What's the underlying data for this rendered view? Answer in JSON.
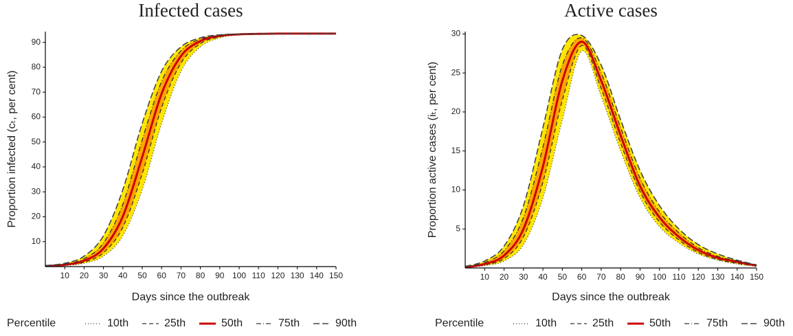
{
  "chart_data": [
    {
      "type": "line",
      "title": "Infected cases",
      "x_label": "Days since the outbreak",
      "y_label": "Proportion infected (cₜ, per cent)",
      "legend_title": "Percentile",
      "band_colors": [
        "#ffe600",
        "#ffa500"
      ],
      "x": [
        0,
        10,
        20,
        30,
        40,
        50,
        60,
        70,
        80,
        90,
        100,
        110,
        120,
        130,
        140,
        150
      ],
      "series": [
        {
          "name": "10th",
          "color": "#333333",
          "dash": "1,3",
          "width": 1.3,
          "values": [
            0.13,
            0.42,
            1.33,
            4.19,
            12.4,
            30.9,
            57.5,
            78.4,
            88.2,
            91.8,
            93.0,
            93.3,
            93.4,
            93.5,
            93.5,
            93.5
          ]
        },
        {
          "name": "25th",
          "color": "#333333",
          "dash": "6,4",
          "width": 1.3,
          "values": [
            0.17,
            0.56,
            1.78,
            5.57,
            15.8,
            37.3,
            63.8,
            81.7,
            89.5,
            92.2,
            93.1,
            93.3,
            93.4,
            93.5,
            93.5,
            93.5
          ]
        },
        {
          "name": "50th",
          "color": "#cc0000",
          "dash": "none",
          "width": 3,
          "values": [
            0.23,
            0.75,
            2.37,
            7.3,
            20.2,
            44.0,
            69.4,
            84.5,
            90.5,
            92.6,
            93.2,
            93.4,
            93.5,
            93.5,
            93.5,
            93.5
          ]
        },
        {
          "name": "75th",
          "color": "#333333",
          "dash": "7,3,1,3",
          "width": 1.3,
          "values": [
            0.31,
            1.0,
            3.17,
            9.5,
            25.1,
            50.9,
            74.3,
            86.6,
            91.3,
            92.8,
            93.3,
            93.4,
            93.5,
            93.5,
            93.5,
            93.5
          ]
        },
        {
          "name": "90th",
          "color": "#444444",
          "dash": "9,4",
          "width": 1.6,
          "values": [
            0.42,
            1.33,
            4.19,
            12.4,
            30.9,
            57.5,
            78.4,
            88.2,
            91.8,
            93.0,
            93.3,
            93.4,
            93.5,
            93.5,
            93.5,
            93.5
          ]
        }
      ],
      "xlim": [
        0,
        150
      ],
      "xticks": [
        10,
        20,
        30,
        40,
        50,
        60,
        70,
        80,
        90,
        100,
        110,
        120,
        130,
        140,
        150
      ],
      "ylim": [
        0,
        94.3
      ],
      "yticks": [
        10,
        20,
        30,
        40,
        50,
        60,
        70,
        80,
        90
      ]
    },
    {
      "type": "line",
      "title": "Active cases",
      "x_label": "Days since the outbreak",
      "y_label": "Proportion active cases (iₜ, per cent)",
      "legend_title": "Percentile",
      "band_colors": [
        "#ffe600",
        "#ffa500"
      ],
      "x": [
        0,
        10,
        20,
        30,
        40,
        50,
        60,
        70,
        80,
        90,
        100,
        110,
        120,
        130,
        140,
        150
      ],
      "series": [
        {
          "name": "10th",
          "color": "#333333",
          "dash": "1,3",
          "width": 1.3,
          "values": [
            0.05,
            0.3,
            0.9,
            3,
            9,
            19,
            27.8,
            22,
            15,
            9,
            5.3,
            3.2,
            1.8,
            1,
            0.5,
            0.2
          ]
        },
        {
          "name": "25th",
          "color": "#333333",
          "dash": "6,4",
          "width": 1.3,
          "values": [
            0.08,
            0.4,
            1.2,
            4,
            11,
            21.5,
            28.5,
            23,
            16,
            9.8,
            5.9,
            3.6,
            2,
            1.1,
            0.6,
            0.25
          ]
        },
        {
          "name": "50th",
          "color": "#cc0000",
          "dash": "none",
          "width": 3,
          "values": [
            0.1,
            0.5,
            1.6,
            5,
            13,
            24,
            29,
            24,
            17,
            10.5,
            6.5,
            4,
            2.3,
            1.3,
            0.8,
            0.3
          ]
        },
        {
          "name": "75th",
          "color": "#333333",
          "dash": "7,3,1,3",
          "width": 1.3,
          "values": [
            0.15,
            0.7,
            2.2,
            6.5,
            15.5,
            26,
            29.5,
            25,
            18,
            11.5,
            7.2,
            4.5,
            2.6,
            1.5,
            0.9,
            0.35
          ]
        },
        {
          "name": "90th",
          "color": "#444444",
          "dash": "9,4",
          "width": 1.6,
          "values": [
            0.2,
            0.9,
            2.8,
            8,
            18,
            28,
            29.8,
            26,
            19,
            12.5,
            8,
            5,
            3,
            1.8,
            1,
            0.4
          ]
        }
      ],
      "xlim": [
        0,
        150
      ],
      "xticks": [
        10,
        20,
        30,
        40,
        50,
        60,
        70,
        80,
        90,
        100,
        110,
        120,
        130,
        140,
        150
      ],
      "ylim": [
        0,
        30.3
      ],
      "yticks": [
        5,
        10,
        15,
        20,
        25,
        30
      ]
    }
  ]
}
